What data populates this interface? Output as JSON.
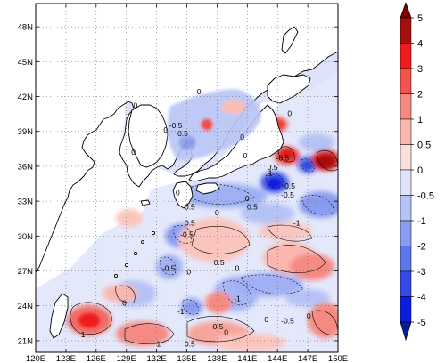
{
  "map": {
    "lon_labels": [
      "120E",
      "123E",
      "126E",
      "129E",
      "132E",
      "135E",
      "138E",
      "141E",
      "144E",
      "147E",
      "150E"
    ],
    "lat_labels": [
      "21N",
      "24N",
      "27N",
      "30N",
      "33N",
      "36N",
      "39N",
      "42N",
      "45N",
      "48N"
    ],
    "lon_range": [
      120,
      150
    ],
    "lat_range": [
      20,
      50
    ],
    "contour_labels": [
      {
        "text": "0",
        "lon": 129.9,
        "lat": 41.0
      },
      {
        "text": "0",
        "lon": 136.2,
        "lat": 42.2
      },
      {
        "text": "-0.5",
        "lon": 133.9,
        "lat": 39.3
      },
      {
        "text": "0",
        "lon": 132.9,
        "lat": 38.9
      },
      {
        "text": "0.5",
        "lon": 134.6,
        "lat": 38.6
      },
      {
        "text": "0",
        "lon": 129.7,
        "lat": 37.0
      },
      {
        "text": "0",
        "lon": 140.5,
        "lat": 38.3
      },
      {
        "text": "0",
        "lon": 145.2,
        "lat": 40.3
      },
      {
        "text": "0",
        "lon": 140.8,
        "lat": 36.7
      },
      {
        "text": "-0.5",
        "lon": 144.5,
        "lat": 36.5
      },
      {
        "text": "0.5",
        "lon": 143.5,
        "lat": 35.7
      },
      {
        "text": "1",
        "lon": 143.3,
        "lat": 35.2
      },
      {
        "text": "-0.5",
        "lon": 145.1,
        "lat": 34.1
      },
      {
        "text": "-0.5",
        "lon": 145.0,
        "lat": 33.3
      },
      {
        "text": "0",
        "lon": 141.0,
        "lat": 33.0
      },
      {
        "text": "0",
        "lon": 134.1,
        "lat": 33.5
      },
      {
        "text": "0.5",
        "lon": 135.3,
        "lat": 32.3
      },
      {
        "text": "0",
        "lon": 138.0,
        "lat": 31.8
      },
      {
        "text": "0.5",
        "lon": 141.5,
        "lat": 32.3
      },
      {
        "text": "-1",
        "lon": 145.9,
        "lat": 30.9
      },
      {
        "text": "0.5",
        "lon": 135.3,
        "lat": 30.9
      },
      {
        "text": "-0.5",
        "lon": 135.0,
        "lat": 29.9
      },
      {
        "text": "-0.5",
        "lon": 133.2,
        "lat": 27.0
      },
      {
        "text": "0",
        "lon": 135.2,
        "lat": 26.7
      },
      {
        "text": "0.5",
        "lon": 138.2,
        "lat": 27.5
      },
      {
        "text": "0",
        "lon": 140.0,
        "lat": 27.0
      },
      {
        "text": "-1",
        "lon": 140.0,
        "lat": 24.4
      },
      {
        "text": "-1",
        "lon": 134.4,
        "lat": 23.3
      },
      {
        "text": "0.5",
        "lon": 138.1,
        "lat": 22.0
      },
      {
        "text": "0",
        "lon": 138.9,
        "lat": 21.5
      },
      {
        "text": "-0.5",
        "lon": 145.0,
        "lat": 22.5
      },
      {
        "text": "0",
        "lon": 142.9,
        "lat": 22.6
      },
      {
        "text": "0",
        "lon": 128.8,
        "lat": 24.0
      },
      {
        "text": "1",
        "lon": 124.7,
        "lat": 21.3
      },
      {
        "text": "1",
        "lon": 132.2,
        "lat": 20.5
      },
      {
        "text": "0.5",
        "lon": 135.3,
        "lat": 20.5
      },
      {
        "text": "0",
        "lon": 147.1,
        "lat": 22.9
      }
    ],
    "palette": {
      "land": "#ffffff",
      "coast": "#000000"
    }
  },
  "colorbar": {
    "labels": [
      "5",
      "4",
      "3",
      "2",
      "1",
      "0.5",
      "0",
      "-0.5",
      "-1",
      "-2",
      "-3",
      "-4",
      "-5"
    ],
    "colors": [
      "#a50f0d",
      "#ee1c1c",
      "#f2544f",
      "#f58a82",
      "#f9b7ae",
      "#fce1da",
      "#dfe4fb",
      "#b5c2f6",
      "#8a9cf0",
      "#5f75ea",
      "#3448e4",
      "#0d1de0"
    ],
    "top_arrow": "#7a0000",
    "bottom_arrow": "#0a1aa0"
  }
}
